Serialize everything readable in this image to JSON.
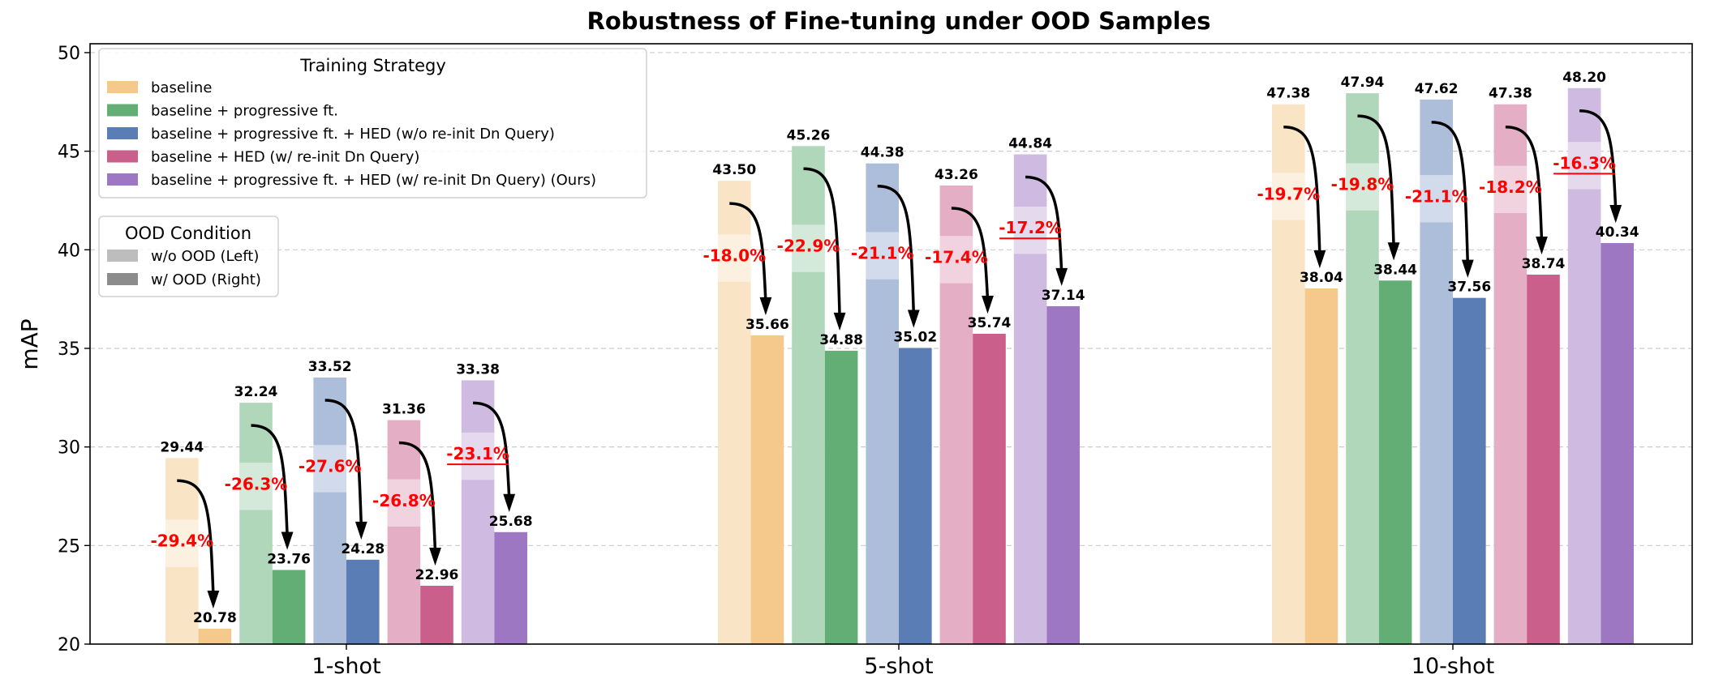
{
  "chart_data": {
    "type": "bar",
    "title": "Robustness of Fine-tuning under OOD Samples",
    "xlabel": "",
    "ylabel": "mAP",
    "ylim": [
      20,
      50.45
    ],
    "yticks": [
      20,
      25,
      30,
      35,
      40,
      45,
      50
    ],
    "grid": "horizontal dashed",
    "categories": [
      "1-shot",
      "5-shot",
      "10-shot"
    ],
    "series": [
      {
        "name": "baseline",
        "color": "#f5c98c",
        "without_ood": [
          29.44,
          43.5,
          47.38
        ],
        "with_ood": [
          20.78,
          35.66,
          38.04
        ],
        "drop": [
          "-29.4%",
          "-18.0%",
          "-19.7%"
        ]
      },
      {
        "name": "baseline + progressive ft.",
        "color": "#63ae74",
        "without_ood": [
          32.24,
          45.26,
          47.94
        ],
        "with_ood": [
          23.76,
          34.88,
          38.44
        ],
        "drop": [
          "-26.3%",
          "-22.9%",
          "-19.8%"
        ]
      },
      {
        "name": "baseline + progressive ft. + HED (w/o re-init Dn Query)",
        "color": "#5a7db5",
        "without_ood": [
          33.52,
          44.38,
          47.62
        ],
        "with_ood": [
          24.28,
          35.02,
          37.56
        ],
        "drop": [
          "-27.6%",
          "-21.1%",
          "-21.1%"
        ]
      },
      {
        "name": "baseline + HED (w/ re-init Dn Query)",
        "color": "#c95f8a",
        "without_ood": [
          31.36,
          43.26,
          47.38
        ],
        "with_ood": [
          22.96,
          35.74,
          38.74
        ],
        "drop": [
          "-26.8%",
          "-17.4%",
          "-18.2%"
        ]
      },
      {
        "name": "baseline + progressive ft. + HED (w/ re-init Dn Query) (Ours)",
        "color": "#9e77c2",
        "without_ood": [
          33.38,
          44.84,
          48.2
        ],
        "with_ood": [
          25.68,
          37.14,
          40.34
        ],
        "drop": [
          "-23.1%",
          "-17.2%",
          "-16.3%"
        ],
        "drop_underlined": true
      }
    ],
    "legend_strategy": {
      "title": "Training Strategy",
      "placement": "top-left"
    },
    "legend_ood": {
      "title": "OOD Condition",
      "items": [
        {
          "label": "w/o OOD (Left)",
          "color": "#bdbdbd"
        },
        {
          "label": "w/ OOD (Right)",
          "color": "#8c8c8c"
        }
      ],
      "placement": "upper-left"
    },
    "drop_color": "#ff0000"
  }
}
